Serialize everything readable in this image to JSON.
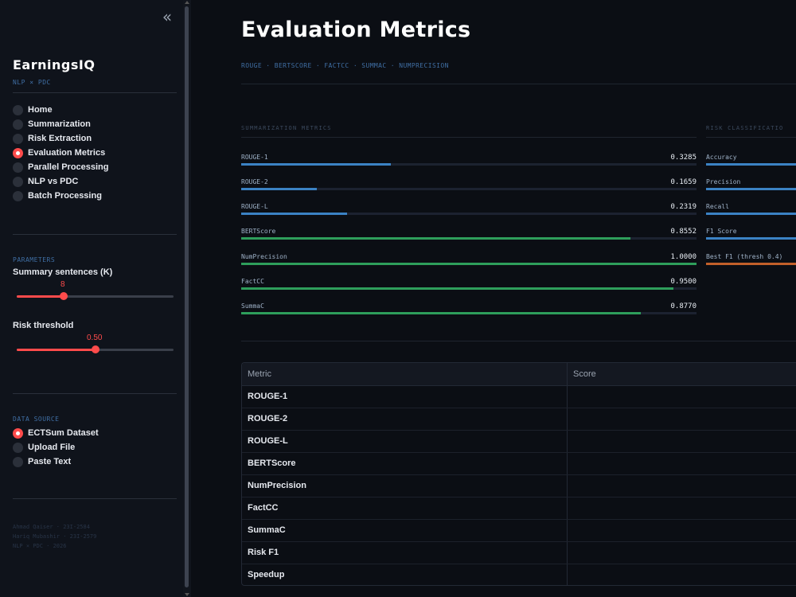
{
  "sidebar": {
    "collapse_icon": "double-chevron-left-icon",
    "collapse_glyph": "«",
    "brand": "EarningsIQ",
    "brand_sub": "NLP × PDC",
    "nav": [
      {
        "label": "Home",
        "selected": false
      },
      {
        "label": "Summarization",
        "selected": false
      },
      {
        "label": "Risk Extraction",
        "selected": false
      },
      {
        "label": "Evaluation Metrics",
        "selected": true
      },
      {
        "label": "Parallel Processing",
        "selected": false
      },
      {
        "label": "NLP vs PDC",
        "selected": false
      },
      {
        "label": "Batch Processing",
        "selected": false
      }
    ],
    "parameters": {
      "heading": "PARAMETERS",
      "summary_sentences": {
        "label": "Summary sentences (K)",
        "value": "8",
        "fraction": 0.3
      },
      "risk_threshold": {
        "label": "Risk threshold",
        "value": "0.50",
        "fraction": 0.5
      }
    },
    "data_source": {
      "heading": "DATA SOURCE",
      "options": [
        {
          "label": "ECTSum Dataset",
          "selected": true
        },
        {
          "label": "Upload File",
          "selected": false
        },
        {
          "label": "Paste Text",
          "selected": false
        }
      ]
    },
    "credits": [
      "Ahmad Qaiser · 23I-2584",
      "Hariq Mubashir · 23I-2579",
      "NLP × PDC · 2026"
    ]
  },
  "main": {
    "title": "Evaluation Metrics",
    "metrics_line": "ROUGE · BERTSCORE · FACTCC · SUMMAC · NUMPRECISION",
    "summarization_heading": "SUMMARIZATION METRICS",
    "risk_heading": "RISK CLASSIFICATIO",
    "summarization_metrics": [
      {
        "name": "ROUGE-1",
        "value": "0.3285",
        "fraction": 0.3285,
        "color": "#3b82c4"
      },
      {
        "name": "ROUGE-2",
        "value": "0.1659",
        "fraction": 0.1659,
        "color": "#3b82c4"
      },
      {
        "name": "ROUGE-L",
        "value": "0.2319",
        "fraction": 0.2319,
        "color": "#3b82c4"
      },
      {
        "name": "BERTScore",
        "value": "0.8552",
        "fraction": 0.8552,
        "color": "#2e9e5b"
      },
      {
        "name": "NumPrecision",
        "value": "1.0000",
        "fraction": 1.0,
        "color": "#2e9e5b"
      },
      {
        "name": "FactCC",
        "value": "0.9500",
        "fraction": 0.95,
        "color": "#2e9e5b"
      },
      {
        "name": "SummaC",
        "value": "0.8770",
        "fraction": 0.877,
        "color": "#2e9e5b"
      }
    ],
    "risk_metrics": [
      {
        "name": "Accuracy",
        "color": "#3b82c4"
      },
      {
        "name": "Precision",
        "color": "#3b82c4"
      },
      {
        "name": "Recall",
        "color": "#3b82c4"
      },
      {
        "name": "F1 Score",
        "color": "#3b82c4"
      },
      {
        "name": "Best F1 (thresh 0.4)",
        "color": "#c2602a"
      }
    ],
    "table": {
      "headers": [
        "Metric",
        "Score"
      ],
      "rows": [
        [
          "ROUGE-1",
          ""
        ],
        [
          "ROUGE-2",
          ""
        ],
        [
          "ROUGE-L",
          ""
        ],
        [
          "BERTScore",
          ""
        ],
        [
          "NumPrecision",
          ""
        ],
        [
          "FactCC",
          ""
        ],
        [
          "SummaC",
          ""
        ],
        [
          "Risk F1",
          ""
        ],
        [
          "Speedup",
          ""
        ]
      ]
    }
  }
}
